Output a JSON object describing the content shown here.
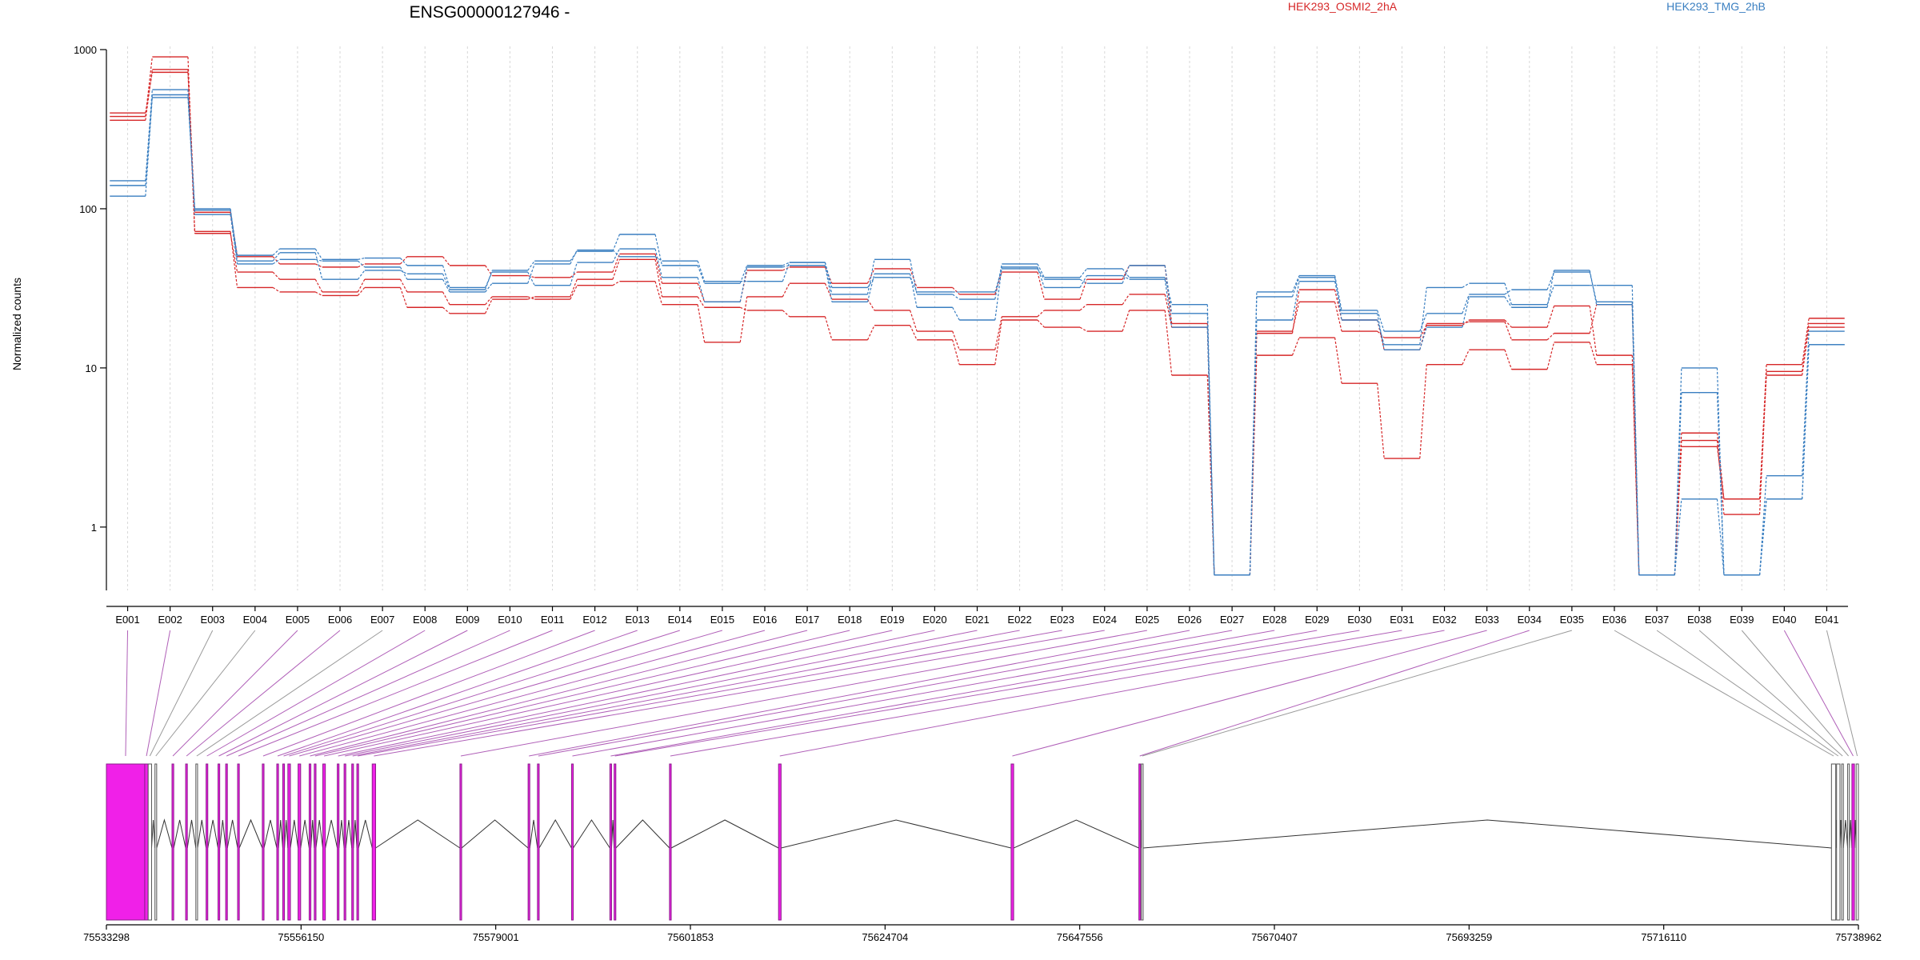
{
  "chart_data": {
    "type": "line",
    "title": "ENSG00000127946 -",
    "xlabel": "",
    "ylabel": "Normalized counts",
    "yscale": "log",
    "ylim": [
      0.4,
      1000
    ],
    "yticks": [
      {
        "value": 1,
        "label": "1"
      },
      {
        "value": 10,
        "label": "10"
      },
      {
        "value": 100,
        "label": "100"
      },
      {
        "value": 1000,
        "label": "1000"
      }
    ],
    "grid": true,
    "legend_position": "top",
    "categories": [
      "E001",
      "E002",
      "E003",
      "E004",
      "E005",
      "E006",
      "E007",
      "E008",
      "E009",
      "E010",
      "E011",
      "E012",
      "E013",
      "E014",
      "E015",
      "E016",
      "E017",
      "E018",
      "E019",
      "E020",
      "E021",
      "E022",
      "E023",
      "E024",
      "E025",
      "E026",
      "E027",
      "E028",
      "E029",
      "E030",
      "E031",
      "E032",
      "E033",
      "E034",
      "E035",
      "E036",
      "E037",
      "E038",
      "E039",
      "E040",
      "E041"
    ],
    "groups": [
      {
        "name": "HEK293_OSMI2_2hA",
        "color": "#d62728"
      },
      {
        "name": "HEK293_TMG_2hB",
        "color": "#3a7fc1"
      }
    ],
    "series": [
      {
        "group": 0,
        "values": [
          380,
          900,
          70,
          40,
          36,
          30,
          36,
          30,
          25,
          28,
          27,
          33,
          35,
          25,
          14.5,
          28,
          34,
          27,
          23,
          17,
          13,
          21,
          23,
          25,
          29,
          18,
          0.5,
          17,
          26,
          17,
          15.5,
          18.5,
          20,
          18,
          24.5,
          12,
          0.5,
          3.9,
          1.5,
          9,
          18
        ]
      },
      {
        "group": 0,
        "values": [
          400,
          720,
          72,
          32,
          30,
          28.5,
          32,
          24,
          22,
          27,
          28,
          36,
          48,
          28,
          24,
          23,
          21,
          15,
          18.5,
          15,
          10.5,
          20,
          18,
          17,
          23,
          9,
          0.5,
          12,
          15.5,
          8,
          2.7,
          10.5,
          13,
          9.8,
          14.5,
          10.5,
          0.5,
          3.2,
          1.5,
          10.5,
          20.5
        ]
      },
      {
        "group": 0,
        "values": [
          360,
          750,
          95,
          50,
          45,
          43,
          45,
          50,
          44,
          38,
          37,
          40,
          52,
          34,
          26,
          41,
          43,
          34,
          42,
          32,
          29,
          40,
          27,
          36,
          44,
          19,
          0.5,
          16.5,
          31,
          20,
          13,
          19,
          19.5,
          15,
          16.5,
          25,
          0.5,
          3.5,
          1.2,
          9.5,
          19
        ]
      },
      {
        "group": 1,
        "values": [
          140,
          520,
          100,
          47,
          53,
          36,
          41,
          39,
          31,
          41,
          47,
          54,
          69,
          44,
          34,
          44,
          46,
          29,
          48,
          29,
          27,
          45,
          37,
          42,
          37,
          25,
          0.5,
          28,
          37,
          20,
          14,
          32,
          34,
          25,
          33,
          33,
          0.5,
          10,
          0.5,
          2.1,
          17
        ]
      },
      {
        "group": 1,
        "values": [
          120,
          500,
          98,
          51,
          56,
          48,
          49,
          44,
          32,
          40,
          33,
          46,
          56,
          37,
          26,
          43,
          44,
          26,
          39,
          24,
          20,
          43,
          32,
          38,
          36,
          18,
          0.5,
          30,
          38,
          23,
          17,
          22,
          29,
          31,
          40,
          26,
          0.5,
          7,
          0.5,
          1.5,
          14
        ]
      },
      {
        "group": 1,
        "values": [
          150,
          560,
          92,
          45,
          48,
          47,
          43,
          36,
          30,
          34,
          45,
          55,
          50,
          47,
          35,
          35,
          46,
          32,
          37,
          30,
          30,
          42,
          36,
          34,
          44,
          22,
          0.5,
          20,
          35,
          22,
          13,
          18,
          28,
          24,
          41,
          25,
          0.5,
          1.5,
          0.5,
          1.5,
          14
        ]
      }
    ],
    "genome_ticks": [
      "75533298",
      "75556150",
      "75579001",
      "75601853",
      "75624704",
      "75647556",
      "75670407",
      "75693259",
      "75716110",
      "75738962"
    ],
    "genome_range": [
      75533298,
      75738962
    ],
    "exon_coords": [
      [
        75533298,
        75537800
      ],
      [
        75537800,
        75538200
      ],
      [
        75538200,
        75538600
      ],
      [
        75539000,
        75539200
      ],
      [
        75541000,
        75541200
      ],
      [
        75542600,
        75542800
      ],
      [
        75543800,
        75544000
      ],
      [
        75545000,
        75545200
      ],
      [
        75546400,
        75546600
      ],
      [
        75547300,
        75547500
      ],
      [
        75548700,
        75548900
      ],
      [
        75551600,
        75551800
      ],
      [
        75553300,
        75553500
      ],
      [
        75554000,
        75554200
      ],
      [
        75554600,
        75554900
      ],
      [
        75555800,
        75556100
      ],
      [
        75557100,
        75557300
      ],
      [
        75557700,
        75557900
      ],
      [
        75558700,
        75559000
      ],
      [
        75560400,
        75560600
      ],
      [
        75561200,
        75561400
      ],
      [
        75562100,
        75562300
      ],
      [
        75562700,
        75562900
      ],
      [
        75564500,
        75564900
      ],
      [
        75574800,
        75575000
      ],
      [
        75582800,
        75583000
      ],
      [
        75583900,
        75584100
      ],
      [
        75587900,
        75588100
      ],
      [
        75592400,
        75592600
      ],
      [
        75592900,
        75593100
      ],
      [
        75599400,
        75599600
      ],
      [
        75612200,
        75612500
      ],
      [
        75639500,
        75639800
      ],
      [
        75654500,
        75654700
      ],
      [
        75654800,
        75655000
      ],
      [
        75735800,
        75736300
      ],
      [
        75736400,
        75736800
      ],
      [
        75737000,
        75737200
      ],
      [
        75737700,
        75737900
      ],
      [
        75738200,
        75738500
      ],
      [
        75738700,
        75738962
      ]
    ],
    "highlighted_exons": [
      "E001",
      "E002",
      "E005",
      "E006",
      "E008",
      "E009",
      "E010",
      "E011",
      "E012",
      "E013",
      "E014",
      "E015",
      "E016",
      "E017",
      "E018",
      "E019",
      "E020",
      "E021",
      "E022",
      "E023",
      "E024",
      "E025",
      "E026",
      "E027",
      "E028",
      "E029",
      "E030",
      "E031",
      "E032",
      "E033",
      "E034",
      "E040"
    ]
  }
}
